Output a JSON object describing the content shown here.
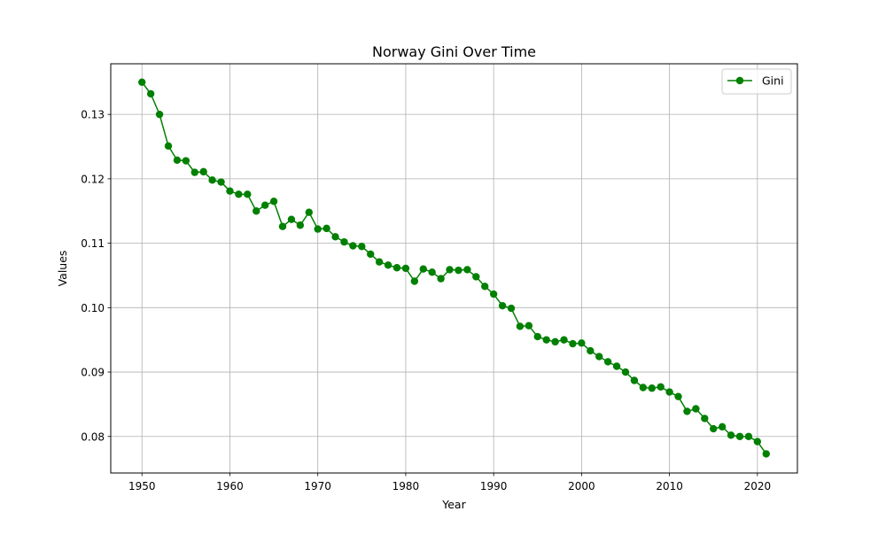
{
  "chart_data": {
    "type": "line",
    "title": "Norway Gini Over Time",
    "xlabel": "Year",
    "ylabel": "Values",
    "xlim": [
      1946.45,
      2024.55
    ],
    "ylim": [
      0.07433,
      0.13786
    ],
    "xticks": [
      1950,
      1960,
      1970,
      1980,
      1990,
      2000,
      2010,
      2020
    ],
    "xtick_labels": [
      "1950",
      "1960",
      "1970",
      "1980",
      "1990",
      "2000",
      "2010",
      "2020"
    ],
    "yticks": [
      0.08,
      0.09,
      0.1,
      0.11,
      0.12,
      0.13
    ],
    "ytick_labels": [
      "0.08",
      "0.09",
      "0.10",
      "0.11",
      "0.12",
      "0.13"
    ],
    "grid": true,
    "legend": {
      "position": "upper-right"
    },
    "x": [
      1950,
      1951,
      1952,
      1953,
      1954,
      1955,
      1956,
      1957,
      1958,
      1959,
      1960,
      1961,
      1962,
      1963,
      1964,
      1965,
      1966,
      1967,
      1968,
      1969,
      1970,
      1971,
      1972,
      1973,
      1974,
      1975,
      1976,
      1977,
      1978,
      1979,
      1980,
      1981,
      1982,
      1983,
      1984,
      1985,
      1986,
      1987,
      1988,
      1989,
      1990,
      1991,
      1992,
      1993,
      1994,
      1995,
      1996,
      1997,
      1998,
      1999,
      2000,
      2001,
      2002,
      2003,
      2004,
      2005,
      2006,
      2007,
      2008,
      2009,
      2010,
      2011,
      2012,
      2013,
      2014,
      2015,
      2016,
      2017,
      2018,
      2019,
      2020,
      2021
    ],
    "series": [
      {
        "name": "Gini",
        "color": "#008000",
        "marker": "circle",
        "values": [
          0.135,
          0.1332,
          0.13,
          0.1251,
          0.1229,
          0.1228,
          0.121,
          0.1211,
          0.1198,
          0.1195,
          0.1181,
          0.1176,
          0.1176,
          0.115,
          0.1159,
          0.1165,
          0.1126,
          0.1137,
          0.1128,
          0.1148,
          0.1122,
          0.1123,
          0.111,
          0.1102,
          0.1096,
          0.1095,
          0.1083,
          0.1071,
          0.1066,
          0.1062,
          0.1061,
          0.1041,
          0.106,
          0.1055,
          0.1045,
          0.1059,
          0.1058,
          0.1059,
          0.1048,
          0.1033,
          0.1021,
          0.1003,
          0.0999,
          0.0971,
          0.0972,
          0.0955,
          0.095,
          0.0947,
          0.095,
          0.0944,
          0.0945,
          0.0933,
          0.0924,
          0.0916,
          0.0909,
          0.09,
          0.0887,
          0.0876,
          0.0875,
          0.0877,
          0.0869,
          0.0862,
          0.0839,
          0.0843,
          0.0828,
          0.0812,
          0.0815,
          0.0802,
          0.08,
          0.08,
          0.0792,
          0.0773
        ]
      }
    ]
  }
}
